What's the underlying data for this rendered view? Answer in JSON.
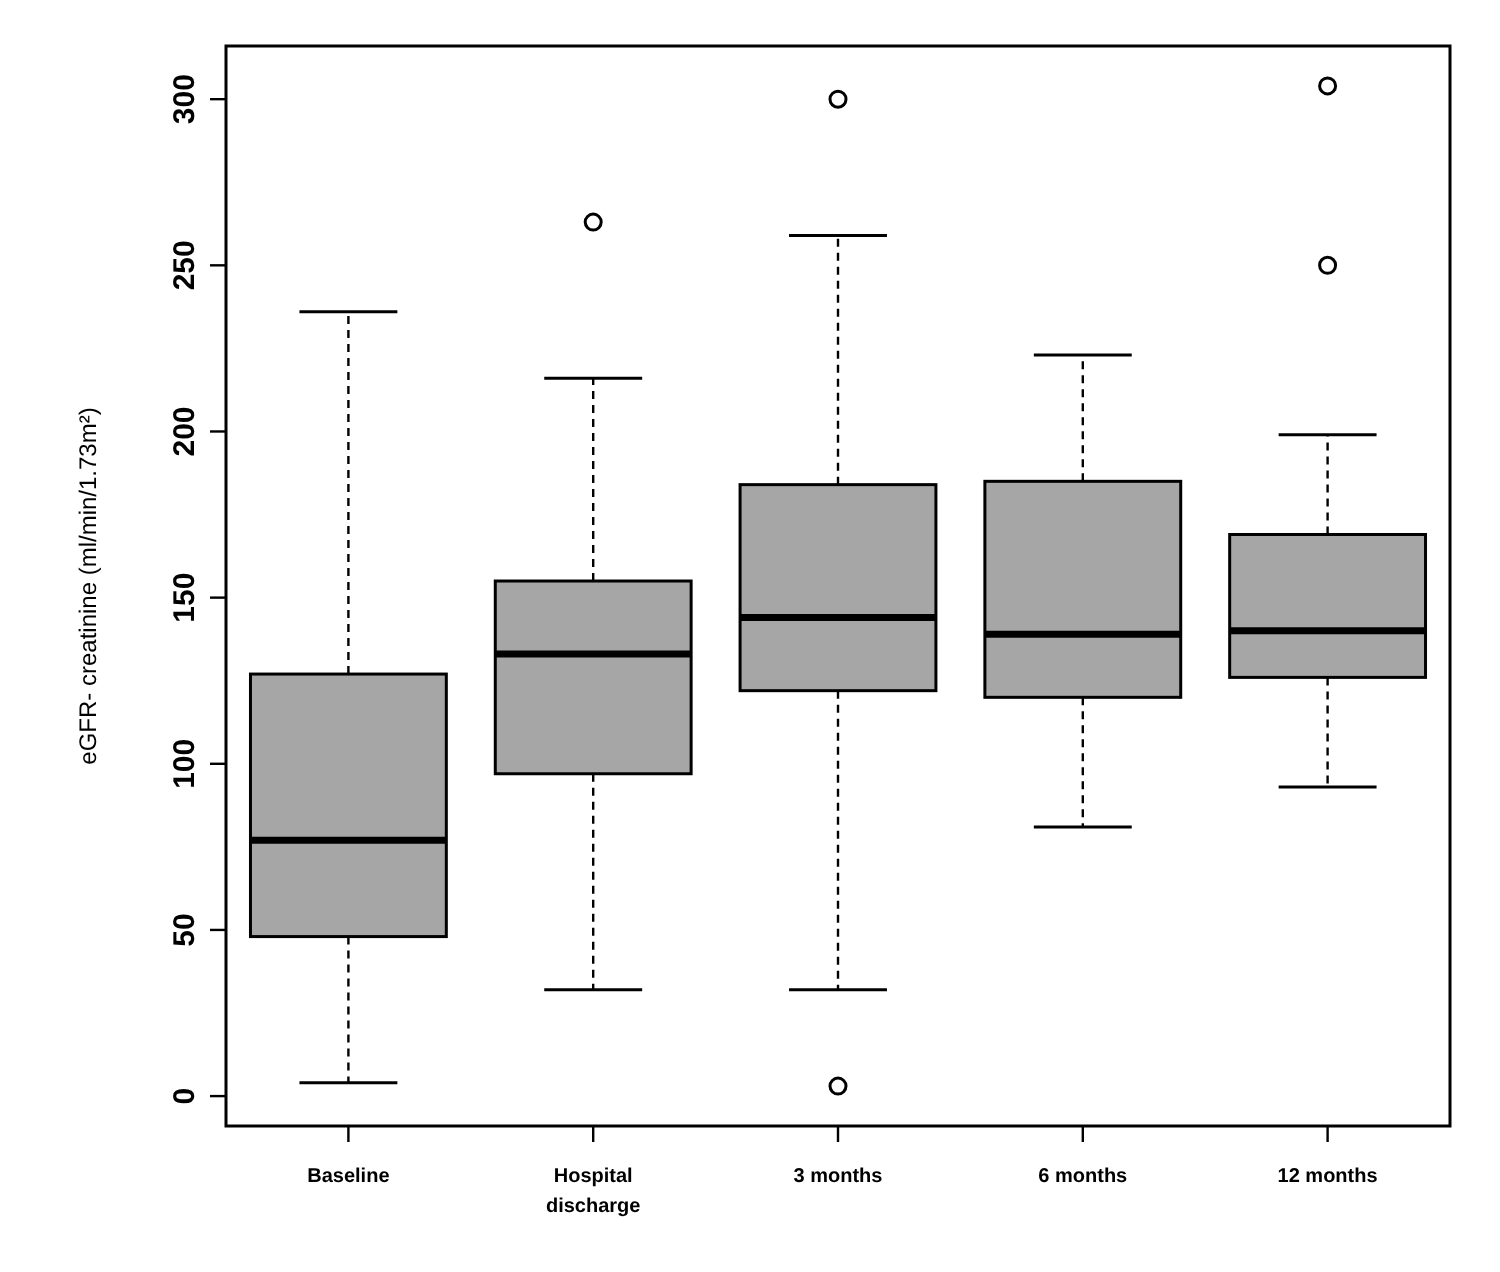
{
  "chart_data": {
    "type": "box",
    "ylabel": "eGFR- creatinine (ml/min/1.73m²)",
    "categories": [
      "Baseline",
      "Hospital\ndischarge",
      "3 months",
      "6 months",
      "12 months"
    ],
    "color": "#a6a6a6",
    "ylim": [
      -9,
      316
    ],
    "yticks": [
      0,
      50,
      100,
      150,
      200,
      250,
      300
    ],
    "grid": false,
    "boxes": [
      {
        "low": 4,
        "q1": 48,
        "median": 77,
        "q3": 127,
        "high": 236
      },
      {
        "low": 32,
        "q1": 97,
        "median": 133,
        "q3": 155,
        "high": 216,
        "outliers": [
          263
        ]
      },
      {
        "low": 32,
        "q1": 122,
        "median": 144,
        "q3": 184,
        "high": 259,
        "outliers": [
          300,
          3
        ]
      },
      {
        "low": 81,
        "q1": 120,
        "median": 139,
        "q3": 185,
        "high": 223
      },
      {
        "low": 93,
        "q1": 126,
        "median": 140,
        "q3": 169,
        "high": 199,
        "outliers": [
          304,
          250
        ]
      }
    ]
  }
}
